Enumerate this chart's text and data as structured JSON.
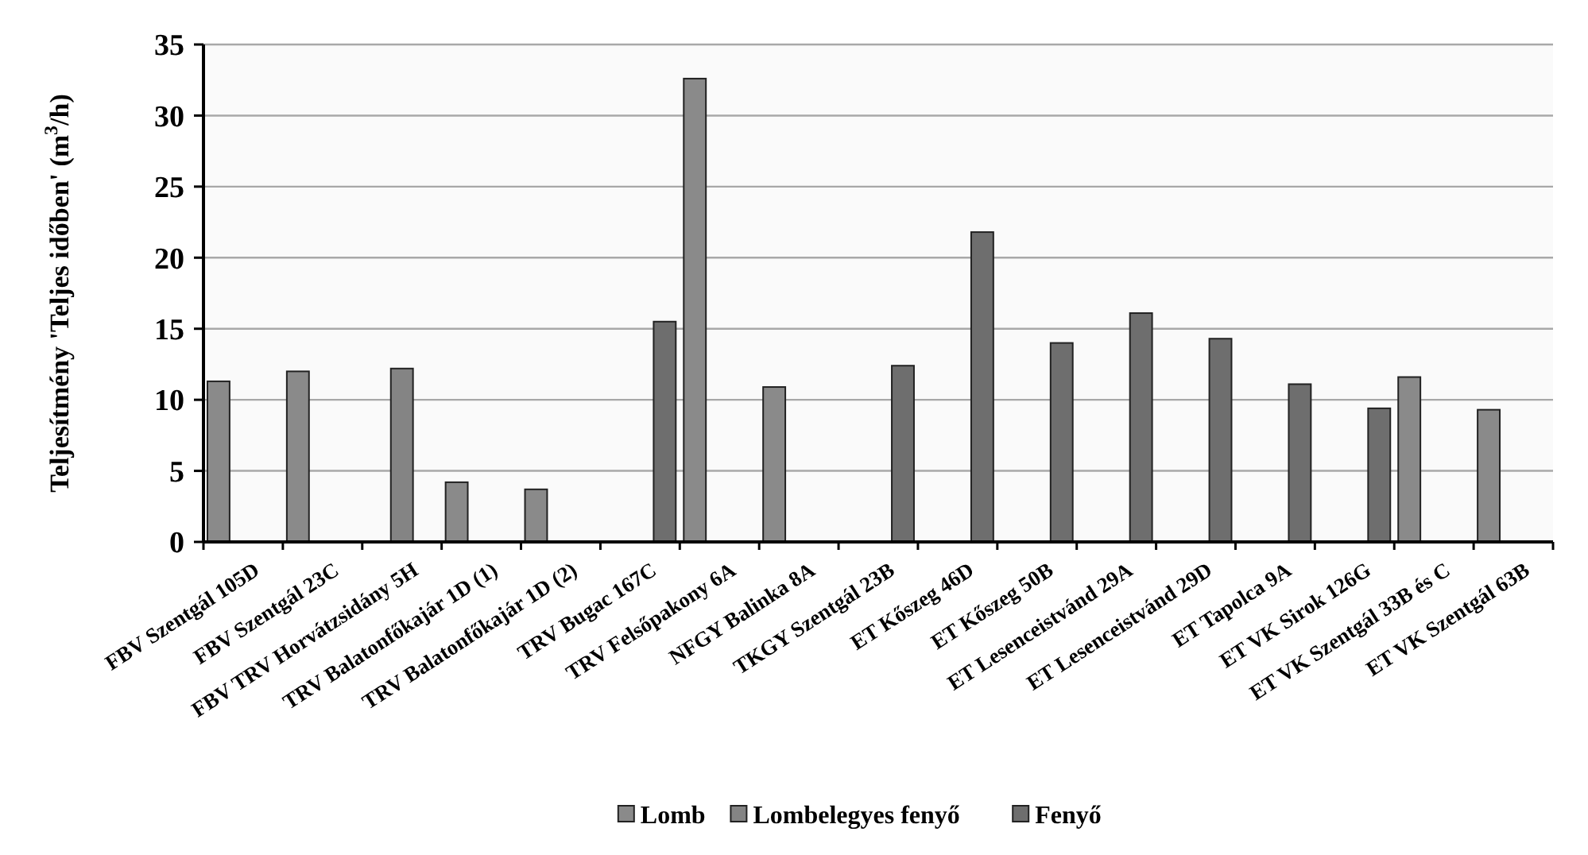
{
  "chart_data": {
    "type": "bar",
    "ylabel": "Teljesítmény 'Teljes időben' (m$^{3}$/h)",
    "categories": [
      "FBV Szentgál 105D",
      "FBV Szentgál 23C",
      "FBV TRV Horvátzsidány 5H",
      "TRV Balatonfőkajár 1D (1)",
      "TRV Balatonfőkajár 1D (2)",
      "TRV Bugac 167C",
      "TRV Felsőpakony 6A",
      "NFGY Balinka 8A",
      "TKGY Szentgál 23B",
      "ET Kőszeg 46D",
      "ET Kőszeg 50B",
      "ET Lesenceistvánd 29A",
      "ET Lesenceistvánd 29D",
      "ET Tapolca 9A",
      "ET VK Sirok 126G",
      "ET VK Szentgál 33B és C",
      "ET VK Szentgál 63B"
    ],
    "series": [
      {
        "name": "Lomb",
        "color": "#8a8a8a",
        "values": [
          11.3,
          12.0,
          null,
          4.2,
          3.7,
          null,
          32.6,
          10.9,
          null,
          null,
          null,
          null,
          null,
          null,
          null,
          11.6,
          9.3
        ]
      },
      {
        "name": "Lombelegyes fenyő",
        "color": "#848484",
        "values": [
          null,
          null,
          12.2,
          null,
          null,
          null,
          null,
          null,
          null,
          null,
          null,
          null,
          null,
          null,
          null,
          null,
          null
        ]
      },
      {
        "name": "Fenyő",
        "color": "#6e6e6e",
        "values": [
          null,
          null,
          null,
          null,
          null,
          15.5,
          null,
          null,
          12.4,
          21.8,
          14.0,
          16.1,
          14.3,
          11.1,
          9.4,
          null,
          null
        ]
      }
    ],
    "ylim": [
      0,
      35
    ],
    "yticks": [
      0,
      5,
      10,
      15,
      20,
      25,
      30,
      35
    ],
    "grid": "y",
    "legend": "bottom"
  }
}
